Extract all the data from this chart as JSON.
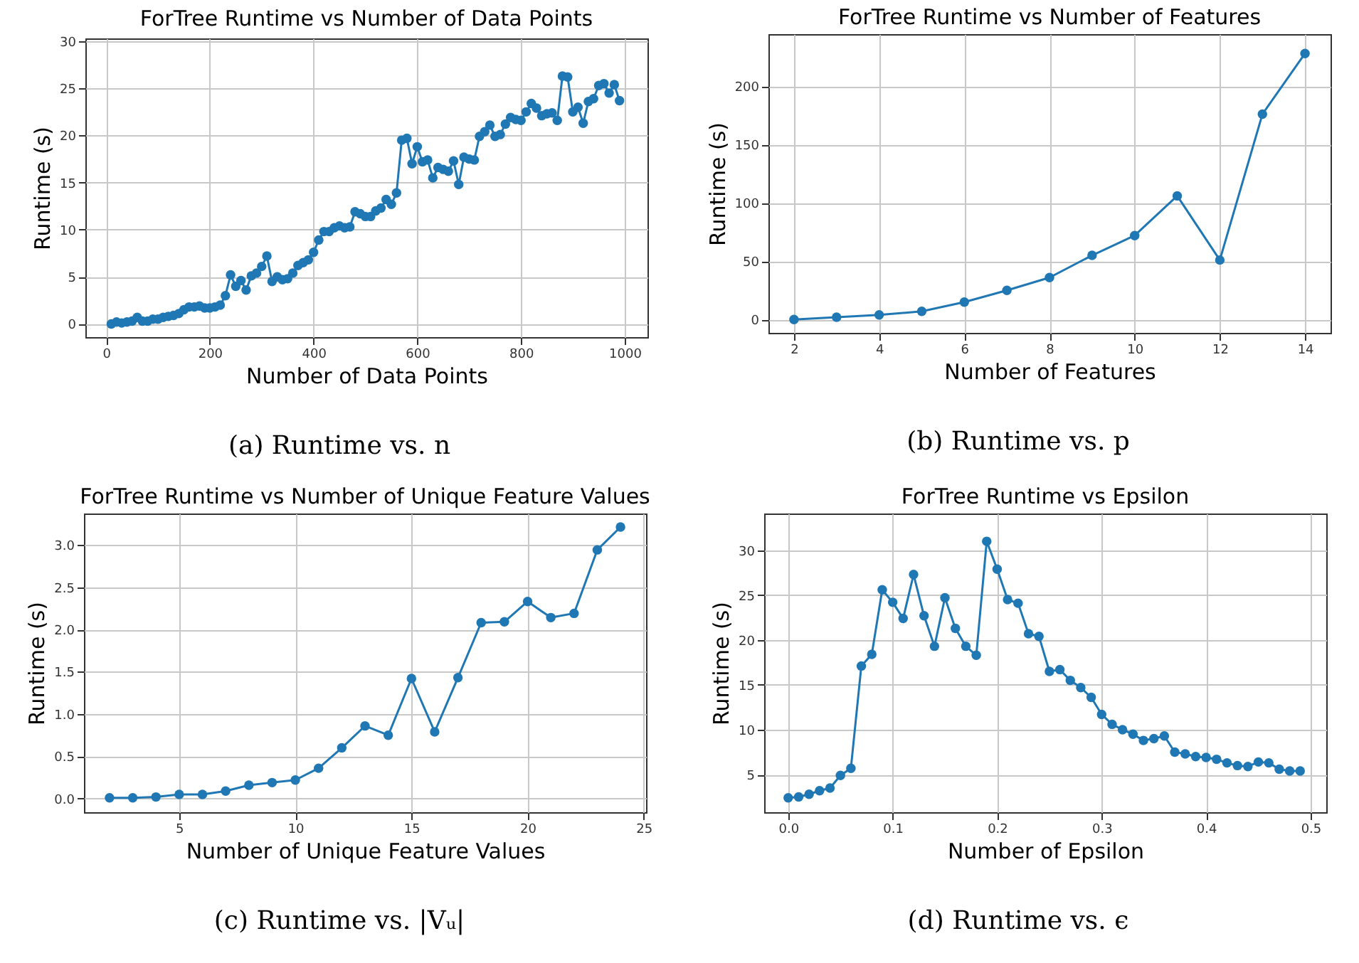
{
  "chart_data": [
    {
      "type": "line",
      "title": "ForTree Runtime vs Number of Data Points",
      "xlabel": "Number of Data Points",
      "ylabel": "Runtime (s)",
      "marker": "circle",
      "grid": true,
      "x": [
        10,
        20,
        30,
        40,
        50,
        60,
        70,
        80,
        90,
        100,
        110,
        120,
        130,
        140,
        150,
        160,
        170,
        180,
        190,
        200,
        210,
        220,
        230,
        240,
        250,
        260,
        270,
        280,
        290,
        300,
        310,
        320,
        330,
        340,
        350,
        360,
        370,
        380,
        390,
        400,
        410,
        420,
        430,
        440,
        450,
        460,
        470,
        480,
        490,
        500,
        510,
        520,
        530,
        540,
        550,
        560,
        570,
        580,
        590,
        600,
        610,
        620,
        630,
        640,
        650,
        660,
        670,
        680,
        690,
        700,
        710,
        720,
        730,
        740,
        750,
        760,
        770,
        780,
        790,
        800,
        810,
        820,
        830,
        840,
        850,
        860,
        870,
        880,
        890,
        900,
        910,
        920,
        930,
        940,
        950,
        960,
        970,
        980,
        990
      ],
      "series": [
        {
          "color": "#1f77b4",
          "values": [
            0.0,
            0.2,
            0.1,
            0.2,
            0.3,
            0.7,
            0.3,
            0.3,
            0.5,
            0.5,
            0.7,
            0.8,
            0.9,
            1.1,
            1.5,
            1.8,
            1.8,
            1.9,
            1.7,
            1.7,
            1.8,
            2.0,
            3.0,
            5.2,
            4.0,
            4.6,
            3.6,
            5.1,
            5.4,
            6.1,
            7.2,
            4.5,
            5.0,
            4.7,
            4.8,
            5.4,
            6.2,
            6.5,
            6.8,
            7.6,
            8.9,
            9.8,
            9.8,
            10.2,
            10.4,
            10.2,
            10.3,
            11.9,
            11.7,
            11.4,
            11.4,
            12.0,
            12.3,
            13.2,
            12.7,
            13.9,
            19.5,
            19.7,
            17.0,
            18.8,
            17.2,
            17.4,
            15.5,
            16.6,
            16.4,
            16.2,
            17.3,
            14.8,
            17.7,
            17.5,
            17.4,
            19.9,
            20.4,
            21.1,
            19.9,
            20.1,
            21.2,
            21.9,
            21.7,
            21.6,
            22.5,
            23.4,
            22.9,
            22.1,
            22.3,
            22.4,
            21.6,
            26.3,
            26.2,
            22.5,
            23.0,
            21.3,
            23.6,
            23.9,
            25.3,
            25.5,
            24.5,
            25.4,
            23.7
          ]
        }
      ],
      "xlim": [
        -40,
        1044
      ],
      "ylim": [
        -1.4,
        30.3
      ],
      "xticks": [
        0,
        200,
        400,
        600,
        800,
        1000
      ],
      "yticks": [
        0,
        5,
        10,
        15,
        20,
        25,
        30
      ],
      "annotations": [
        "(a) Runtime vs. n"
      ]
    },
    {
      "type": "line",
      "title": "ForTree Runtime vs Number of Features",
      "xlabel": "Number of Features",
      "ylabel": "Runtime (s)",
      "marker": "circle",
      "grid": true,
      "x": [
        2,
        3,
        4,
        5,
        6,
        7,
        8,
        9,
        10,
        11,
        12,
        13,
        14
      ],
      "series": [
        {
          "color": "#1f77b4",
          "values": [
            0,
            2,
            4,
            7,
            15,
            25,
            36,
            55,
            72,
            106,
            51,
            176,
            228
          ]
        }
      ],
      "xlim": [
        1.4,
        14.6
      ],
      "ylim": [
        -11.4,
        244.6
      ],
      "xticks": [
        2,
        4,
        6,
        8,
        10,
        12,
        14
      ],
      "yticks": [
        0,
        50,
        100,
        150,
        200
      ],
      "annotations": [
        "(b) Runtime vs. p"
      ]
    },
    {
      "type": "line",
      "title": "ForTree Runtime vs Number of Unique Feature Values",
      "xlabel": "Number of Unique Feature Values",
      "ylabel": "Runtime (s)",
      "marker": "circle",
      "grid": true,
      "x": [
        2,
        3,
        4,
        5,
        6,
        7,
        8,
        9,
        10,
        11,
        12,
        13,
        14,
        15,
        16,
        17,
        18,
        19,
        20,
        21,
        22,
        23,
        24
      ],
      "series": [
        {
          "color": "#1f77b4",
          "values": [
            0.01,
            0.01,
            0.02,
            0.05,
            0.05,
            0.09,
            0.16,
            0.19,
            0.22,
            0.36,
            0.6,
            0.86,
            0.75,
            1.42,
            0.79,
            1.43,
            2.08,
            2.09,
            2.33,
            2.14,
            2.19,
            2.94,
            3.21
          ]
        }
      ],
      "xlim": [
        0.9,
        25.1
      ],
      "ylim": [
        -0.16,
        3.37
      ],
      "xticks": [
        5,
        10,
        15,
        20,
        25
      ],
      "yticks": [
        {
          "value": 0,
          "label": "0.0"
        },
        {
          "value": 0.5,
          "label": "0.5"
        },
        {
          "value": 1,
          "label": "1.0"
        },
        {
          "value": 1.5,
          "label": "1.5"
        },
        {
          "value": 2,
          "label": "2.0"
        },
        {
          "value": 2.5,
          "label": "2.5"
        },
        {
          "value": 3,
          "label": "3.0"
        }
      ],
      "annotations": [
        "(c) Runtime vs. |Vᵤ|"
      ]
    },
    {
      "type": "line",
      "title": "ForTree Runtime vs Epsilon",
      "xlabel": "Number of Epsilon",
      "ylabel": "Runtime (s)",
      "marker": "circle",
      "grid": true,
      "x": [
        0,
        0.01,
        0.02,
        0.03,
        0.04,
        0.05,
        0.06,
        0.07,
        0.08,
        0.09,
        0.1,
        0.11,
        0.12,
        0.13,
        0.14,
        0.15,
        0.16,
        0.17,
        0.18,
        0.19,
        0.2,
        0.21,
        0.22,
        0.23,
        0.24,
        0.25,
        0.26,
        0.27,
        0.28,
        0.29,
        0.3,
        0.31,
        0.32,
        0.33,
        0.34,
        0.35,
        0.36,
        0.37,
        0.38,
        0.39,
        0.4,
        0.41,
        0.42,
        0.43,
        0.44,
        0.45,
        0.46,
        0.47,
        0.48,
        0.49
      ],
      "series": [
        {
          "color": "#1f77b4",
          "values": [
            2.4,
            2.5,
            2.8,
            3.2,
            3.5,
            4.9,
            5.7,
            17.1,
            18.4,
            25.6,
            24.2,
            22.4,
            27.3,
            22.7,
            19.3,
            24.7,
            21.3,
            19.3,
            18.3,
            31.0,
            27.9,
            24.5,
            24.1,
            20.7,
            20.4,
            16.5,
            16.7,
            15.5,
            14.7,
            13.6,
            11.7,
            10.6,
            10.0,
            9.5,
            8.8,
            9.0,
            9.3,
            7.5,
            7.3,
            7.0,
            6.9,
            6.7,
            6.3,
            6.0,
            5.9,
            6.4,
            6.3,
            5.6,
            5.4,
            5.4
          ]
        }
      ],
      "xlim": [
        -0.023,
        0.515
      ],
      "ylim": [
        0.8,
        34.1
      ],
      "xticks": [
        {
          "value": 0,
          "label": "0.0"
        },
        {
          "value": 0.1,
          "label": "0.1"
        },
        {
          "value": 0.2,
          "label": "0.2"
        },
        {
          "value": 0.3,
          "label": "0.3"
        },
        {
          "value": 0.4,
          "label": "0.4"
        },
        {
          "value": 0.5,
          "label": "0.5"
        }
      ],
      "yticks": [
        5,
        10,
        15,
        20,
        25,
        30
      ],
      "annotations": [
        "(d) Runtime vs. ϵ"
      ]
    }
  ]
}
